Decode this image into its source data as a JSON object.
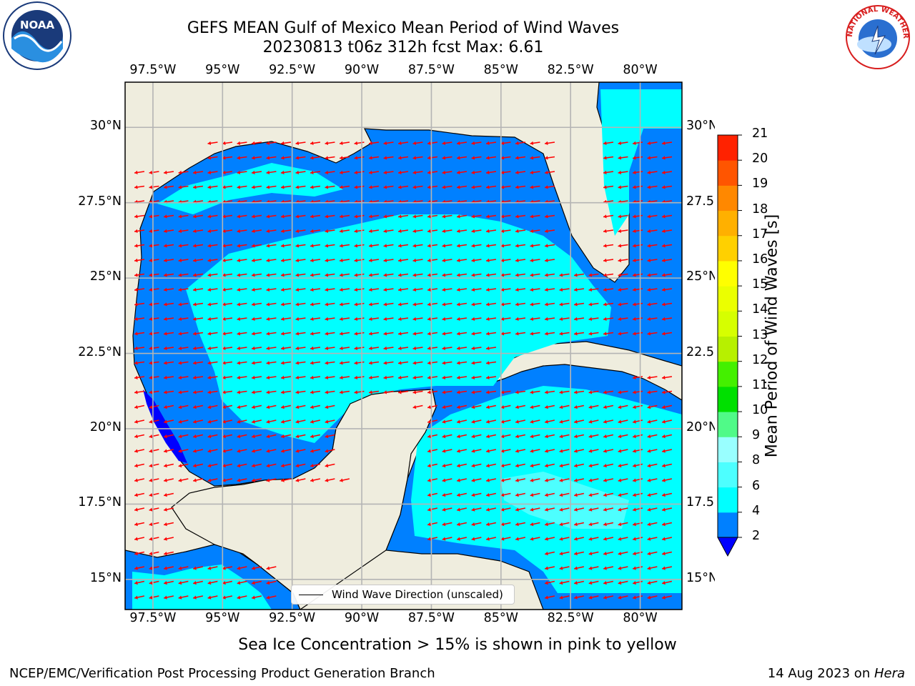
{
  "header": {
    "title": "GEFS MEAN Gulf of Mexico Mean Period of Wind Waves",
    "subtitle": "20230813 t06z 312h fcst   Max: 6.61"
  },
  "map": {
    "lon_range": [
      -98.5,
      -78.5
    ],
    "lat_range": [
      14,
      31.5
    ],
    "x_tick_labels": [
      "97.5°W",
      "95°W",
      "92.5°W",
      "90°W",
      "87.5°W",
      "85°W",
      "82.5°W",
      "80°W"
    ],
    "y_tick_labels_left": [
      "30°N",
      "27.5°N",
      "25°N",
      "22.5°N",
      "20°N",
      "17.5°N",
      "15°N"
    ],
    "y_tick_labels_right": [
      "30°N",
      "27.5°N",
      "25°N",
      "22.5°N",
      "20°N",
      "17.5°N",
      "15°N"
    ],
    "land_color": "#efedde",
    "grid_color": "#b4b4b4",
    "arrow_color": "#ff0000",
    "legend_label": "Wind Wave Direction (unscaled)"
  },
  "colorbar": {
    "label": "Mean Period of Wind Waves [s]",
    "levels": [
      "2",
      "4",
      "6",
      "8",
      "9",
      "10",
      "11",
      "12",
      "13",
      "14",
      "15",
      "16",
      "17",
      "18",
      "19",
      "20",
      "21"
    ],
    "level_colors": [
      "#0080ff",
      "#00ffff",
      "#4dffff",
      "#99ffff",
      "#50fa88",
      "#00e000",
      "#44f000",
      "#b7f000",
      "#d6ff00",
      "#ebff00",
      "#ffff00",
      "#ffd000",
      "#ffb000",
      "#ff8800",
      "#ff5500",
      "#ff2200"
    ],
    "under_color": "#0000ff"
  },
  "footer": {
    "note": "Sea Ice Concentration > 15% is shown in pink to yellow",
    "left": "NCEP/EMC/Verification Post Processing Product Generation Branch",
    "right_date": "14 Aug 2023 on ",
    "right_machine": "Hera"
  },
  "logos": {
    "left_name": "noaa-logo",
    "left_text": "NOAA",
    "right_name": "nws-logo",
    "right_text": "NATIONAL WEATHER SERVICE"
  }
}
